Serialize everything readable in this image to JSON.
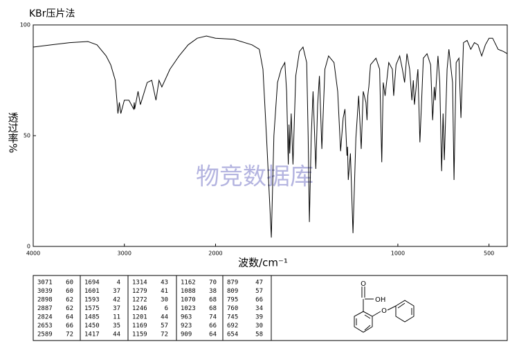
{
  "title": "KBr压片法",
  "watermark": "物竞数据库",
  "chart_data": {
    "type": "line",
    "xlabel": "波数/cm⁻¹",
    "ylabel": "透过率%",
    "xlim": [
      4000,
      400
    ],
    "x_expand_below": 2000,
    "x_expand_factor": 2,
    "xticks": [
      4000,
      3000,
      2000,
      1000,
      500
    ],
    "ylim": [
      0,
      100
    ],
    "yticks": [
      0,
      50,
      100
    ],
    "series": [
      {
        "color": "#000000",
        "x": [
          4000,
          3800,
          3600,
          3400,
          3300,
          3200,
          3150,
          3100,
          3071,
          3055,
          3039,
          3000,
          2950,
          2898,
          2892,
          2887,
          2850,
          2824,
          2750,
          2700,
          2653,
          2620,
          2589,
          2500,
          2400,
          2300,
          2200,
          2100,
          2000,
          1900,
          1800,
          1760,
          1740,
          1720,
          1694,
          1680,
          1660,
          1640,
          1620,
          1610,
          1601,
          1597,
          1593,
          1585,
          1575,
          1560,
          1540,
          1520,
          1500,
          1492,
          1485,
          1475,
          1465,
          1450,
          1440,
          1430,
          1417,
          1400,
          1380,
          1350,
          1330,
          1314,
          1300,
          1290,
          1279,
          1276,
          1272,
          1260,
          1246,
          1230,
          1215,
          1201,
          1190,
          1175,
          1169,
          1165,
          1162,
          1159,
          1150,
          1120,
          1100,
          1088,
          1080,
          1070,
          1050,
          1030,
          1023,
          1010,
          990,
          975,
          963,
          950,
          935,
          923,
          915,
          909,
          890,
          879,
          860,
          840,
          820,
          809,
          800,
          795,
          780,
          770,
          760,
          752,
          745,
          730,
          720,
          700,
          692,
          680,
          665,
          654,
          640,
          620,
          600,
          580,
          560,
          540,
          520,
          500,
          480,
          450,
          420,
          400
        ],
        "values": [
          90,
          91,
          92,
          92.5,
          91,
          86,
          82,
          75,
          60,
          65,
          60,
          66,
          66,
          62,
          65,
          62,
          70,
          64,
          74,
          75,
          66,
          75,
          72,
          80,
          86,
          91,
          94,
          95,
          94,
          93.5,
          91,
          89,
          80,
          49,
          4,
          50,
          74,
          80,
          83,
          70,
          37,
          55,
          42,
          60,
          37,
          77,
          88,
          90,
          83,
          50,
          11,
          50,
          70,
          35,
          64,
          77,
          44,
          80,
          86,
          83,
          70,
          43,
          58,
          62,
          41,
          45,
          30,
          42,
          6,
          49,
          68,
          44,
          70,
          65,
          57,
          68,
          70,
          72,
          82,
          85,
          80,
          38,
          74,
          68,
          83,
          80,
          68,
          82,
          86,
          80,
          74,
          87,
          80,
          66,
          75,
          64,
          80,
          47,
          85,
          87,
          82,
          57,
          72,
          66,
          86,
          74,
          34,
          60,
          39,
          80,
          89,
          74,
          30,
          83,
          85,
          58,
          92,
          93,
          89,
          92,
          91,
          86,
          91,
          94,
          94,
          89,
          88,
          87
        ]
      }
    ]
  },
  "peak_table": [
    [
      [
        3071,
        60
      ],
      [
        3039,
        60
      ],
      [
        2898,
        62
      ],
      [
        2887,
        62
      ],
      [
        2824,
        64
      ],
      [
        2653,
        66
      ],
      [
        2589,
        72
      ]
    ],
    [
      [
        1694,
        4
      ],
      [
        1601,
        37
      ],
      [
        1593,
        42
      ],
      [
        1575,
        37
      ],
      [
        1485,
        11
      ],
      [
        1450,
        35
      ],
      [
        1417,
        44
      ]
    ],
    [
      [
        1314,
        43
      ],
      [
        1279,
        41
      ],
      [
        1272,
        30
      ],
      [
        1246,
        6
      ],
      [
        1201,
        44
      ],
      [
        1169,
        57
      ],
      [
        1159,
        72
      ]
    ],
    [
      [
        1162,
        70
      ],
      [
        1088,
        38
      ],
      [
        1070,
        68
      ],
      [
        1023,
        68
      ],
      [
        963,
        74
      ],
      [
        923,
        66
      ],
      [
        909,
        64
      ]
    ],
    [
      [
        879,
        47
      ],
      [
        809,
        57
      ],
      [
        795,
        66
      ],
      [
        760,
        34
      ],
      [
        745,
        39
      ],
      [
        692,
        30
      ],
      [
        654,
        58
      ]
    ]
  ],
  "structure": {
    "labels": [
      "O",
      "OH",
      "O"
    ]
  }
}
